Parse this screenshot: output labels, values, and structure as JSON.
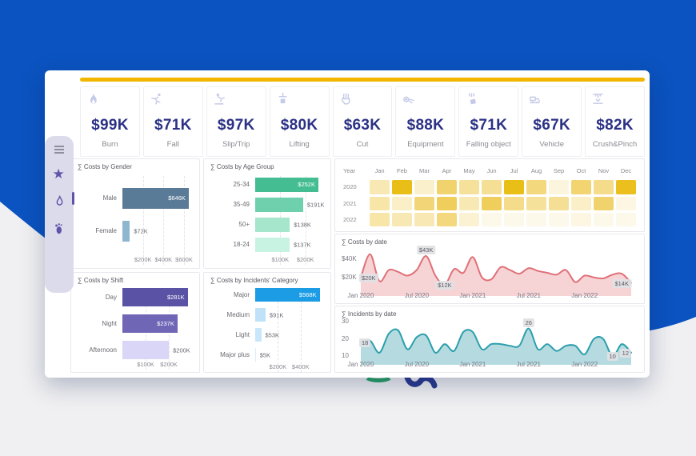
{
  "colors": {
    "background_blue": "#0B53C0",
    "accent_gold": "#F2B600",
    "kpi_value": "#2B3185",
    "kpi_icon": "#C5CAE8",
    "sidebar_bg": "#DBDBEC",
    "sidebar_icon": "#5F55A8"
  },
  "sidebar": {
    "items": [
      {
        "name": "menu"
      },
      {
        "name": "star"
      },
      {
        "name": "flame",
        "selected": true
      },
      {
        "name": "footprint"
      }
    ]
  },
  "kpis": [
    {
      "icon": "flame-icon",
      "value": "$99K",
      "label": "Burn"
    },
    {
      "icon": "falling-person-icon",
      "value": "$71K",
      "label": "Fall"
    },
    {
      "icon": "slip-icon",
      "value": "$97K",
      "label": "Slip/Trip"
    },
    {
      "icon": "lifting-icon",
      "value": "$80K",
      "label": "Lifting"
    },
    {
      "icon": "cut-hand-icon",
      "value": "$63K",
      "label": "Cut"
    },
    {
      "icon": "equipment-icon",
      "value": "$88K",
      "label": "Equipment"
    },
    {
      "icon": "falling-object-icon",
      "value": "$71K",
      "label": "Falling object"
    },
    {
      "icon": "vehicle-icon",
      "value": "$67K",
      "label": "Vehicle"
    },
    {
      "icon": "crush-icon",
      "value": "$82K",
      "label": "Crush&Pinch"
    }
  ],
  "chart_data": [
    {
      "id": "gender",
      "type": "bar",
      "orientation": "horizontal",
      "title": "∑ Costs by Gender",
      "categories": [
        "Male",
        "Female"
      ],
      "values": [
        646,
        72
      ],
      "value_labels": [
        "$646K",
        "$72K"
      ],
      "label_inside": [
        true,
        false
      ],
      "colors": [
        "#5A7B97",
        "#8FB6CF"
      ],
      "xmax": 670,
      "x_ticks": [
        {
          "v": 200,
          "label": "$200K"
        },
        {
          "v": 400,
          "label": "$400K"
        },
        {
          "v": 600,
          "label": "$600K"
        }
      ]
    },
    {
      "id": "age",
      "type": "bar",
      "orientation": "horizontal",
      "title": "∑ Costs by Age Group",
      "categories": [
        "25-34",
        "35-49",
        "50+",
        "18-24"
      ],
      "values": [
        252,
        191,
        138,
        137
      ],
      "value_labels": [
        "$252K",
        "$191K",
        "$138K",
        "$137K"
      ],
      "label_inside": [
        true,
        false,
        false,
        false
      ],
      "colors": [
        "#45BD92",
        "#6FD0AD",
        "#A5E6CD",
        "#C8F2E1"
      ],
      "xmax": 268,
      "x_ticks": [
        {
          "v": 100,
          "label": "$100K"
        },
        {
          "v": 200,
          "label": "$200K"
        }
      ]
    },
    {
      "id": "shift",
      "type": "bar",
      "orientation": "horizontal",
      "title": "∑ Costs by Shift",
      "categories": [
        "Day",
        "Night",
        "Afternoon"
      ],
      "values": [
        281,
        237,
        200
      ],
      "value_labels": [
        "$281K",
        "$237K",
        "$200K"
      ],
      "label_inside": [
        true,
        true,
        false
      ],
      "colors": [
        "#5A53A5",
        "#6F67B6",
        "#D9D6F7"
      ],
      "xmax": 296,
      "x_ticks": [
        {
          "v": 100,
          "label": "$100K"
        },
        {
          "v": 200,
          "label": "$200K"
        }
      ]
    },
    {
      "id": "category",
      "type": "bar",
      "orientation": "horizontal",
      "title": "∑ Costs by Incidents' Category",
      "categories": [
        "Major",
        "Medium",
        "Light",
        "Major plus"
      ],
      "values": [
        568,
        91,
        53,
        5
      ],
      "value_labels": [
        "$568K",
        "$91K",
        "$53K",
        "$5K"
      ],
      "label_inside": [
        true,
        false,
        false,
        false
      ],
      "colors": [
        "#1B9CE5",
        "#BFE2F8",
        "#C9E7FA",
        "#D9EEFB"
      ],
      "xmax": 592,
      "x_ticks": [
        {
          "v": 200,
          "label": "$200K"
        },
        {
          "v": 400,
          "label": "$400K"
        }
      ]
    },
    {
      "id": "heatmap",
      "type": "heatmap",
      "corner": "Year",
      "columns": [
        "Jan",
        "Feb",
        "Mar",
        "Apr",
        "May",
        "Jun",
        "Jul",
        "Aug",
        "Sep",
        "Oct",
        "Nov",
        "Dec"
      ],
      "rows": [
        "2020",
        "2021",
        "2022"
      ],
      "cell_colors": [
        [
          "#F8E9B4",
          "#E9BE17",
          "#FAF0CB",
          "#F1D36E",
          "#F6E19B",
          "#F5DF94",
          "#E9BE17",
          "#F3D87E",
          "#FCF5DE",
          "#F2D471",
          "#F4DC8A",
          "#EABF1E"
        ],
        [
          "#F7E6A8",
          "#FAEFC6",
          "#F2D576",
          "#EFCE5C",
          "#F8E9B4",
          "#EFCE5C",
          "#F4DC8A",
          "#F6E19B",
          "#F5DF94",
          "#FAEFC6",
          "#F1D36E",
          "#FCF6E2"
        ],
        [
          "#F7E6A8",
          "#F8E9B4",
          "#F8E9B4",
          "#F3D87E",
          "#FBF2D3",
          "#FDF9EA",
          "#FDF9EA",
          "#FDF9EA",
          "#FDF9EA",
          "#FCF6E2",
          "#FDF9EA",
          "#FDF9EA"
        ]
      ]
    },
    {
      "id": "costs_by_date",
      "type": "area",
      "title": "∑ Costs by date",
      "line_color": "#E07078",
      "fill_color": "rgba(226,120,128,0.32)",
      "ymin": 0,
      "ymax": 50,
      "y_ticks": [
        {
          "v": 40,
          "label": "$40K"
        },
        {
          "v": 20,
          "label": "$20K"
        }
      ],
      "x_labels": [
        {
          "i": 0,
          "label": "Jan 2020"
        },
        {
          "i": 6,
          "label": "Jul 2020"
        },
        {
          "i": 12,
          "label": "Jan 2021"
        },
        {
          "i": 18,
          "label": "Jul 2021"
        },
        {
          "i": 24,
          "label": "Jan 2022"
        }
      ],
      "values": [
        20,
        45,
        16,
        28,
        26,
        22,
        28,
        43,
        22,
        12,
        29,
        25,
        42,
        20,
        18,
        31,
        28,
        24,
        30,
        27,
        25,
        23,
        28,
        15,
        22,
        20,
        19,
        23,
        24,
        14
      ],
      "annotations": [
        {
          "i": 0,
          "label": "$20K"
        },
        {
          "i": 7,
          "label": "$43K"
        },
        {
          "i": 9,
          "label": "$12K"
        },
        {
          "i": 29,
          "label": "$14K"
        }
      ]
    },
    {
      "id": "incidents_by_date",
      "type": "area",
      "title": "∑ Incidents by date",
      "line_color": "#2C9FAC",
      "fill_color": "rgba(120,190,198,0.55)",
      "ymin": 5,
      "ymax": 30,
      "y_ticks": [
        {
          "v": 30,
          "label": "30"
        },
        {
          "v": 20,
          "label": "20"
        },
        {
          "v": 10,
          "label": "10"
        }
      ],
      "x_labels": [
        {
          "i": 0,
          "label": "Jan 2020"
        },
        {
          "i": 6,
          "label": "Jul 2020"
        },
        {
          "i": 12,
          "label": "Jan 2021"
        },
        {
          "i": 18,
          "label": "Jul 2021"
        },
        {
          "i": 24,
          "label": "Jan 2022"
        }
      ],
      "values": [
        18,
        19,
        12,
        23,
        25,
        14,
        21,
        22,
        12,
        17,
        13,
        24,
        24,
        14,
        17,
        17,
        16,
        16,
        26,
        14,
        17,
        13,
        16,
        16,
        11,
        20,
        20,
        10,
        17,
        12
      ],
      "annotations": [
        {
          "i": 0,
          "label": "18"
        },
        {
          "i": 18,
          "label": "26"
        },
        {
          "i": 27,
          "label": "10"
        },
        {
          "i": 29,
          "label": "12"
        }
      ]
    }
  ]
}
